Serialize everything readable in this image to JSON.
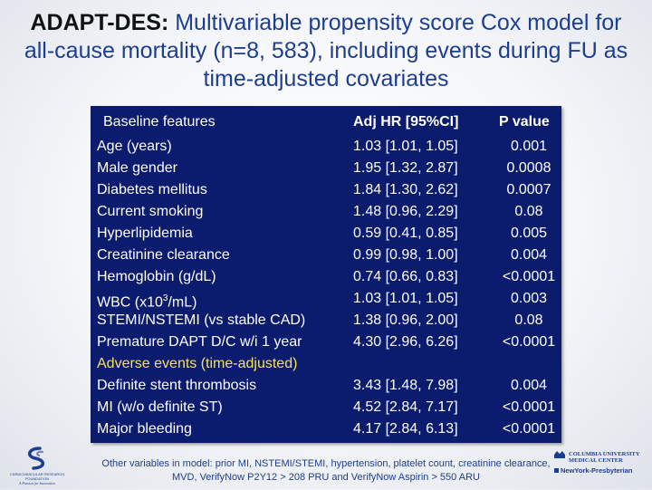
{
  "title": {
    "bold": "ADAPT-DES:",
    "rest": " Multivariable propensity score Cox model for all-cause mortality (n=8, 583), including events during FU as time-adjusted covariates"
  },
  "table": {
    "headers": {
      "feature": "Baseline features",
      "hr": "Adj HR [95%CI]",
      "p": "P value"
    },
    "rows": [
      {
        "feature": "Age (years)",
        "hr": "1.03 [1.01, 1.05]",
        "p": "0.001"
      },
      {
        "feature": "Male gender",
        "hr": "1.95 [1.32, 2.87]",
        "p": "0.0008"
      },
      {
        "feature": "Diabetes mellitus",
        "hr": "1.84 [1.30, 2.62]",
        "p": "0.0007"
      },
      {
        "feature": "Current smoking",
        "hr": "1.48 [0.96, 2.29]",
        "p": "0.08"
      },
      {
        "feature": "Hyperlipidemia",
        "hr": "0.59 [0.41, 0.85]",
        "p": "0.005"
      },
      {
        "feature": "Creatinine clearance",
        "hr": "0.99 [0.98, 1.00]",
        "p": "0.004"
      },
      {
        "feature": "Hemoglobin (g/dL)",
        "hr": "0.74 [0.66, 0.83]",
        "p": "<0.0001"
      },
      {
        "feature_pre": "WBC (x10",
        "feature_sup": "3",
        "feature_post": "/mL)",
        "hr": "1.03 [1.01, 1.05]",
        "p": "0.003"
      },
      {
        "feature": "STEMI/NSTEMI (vs stable CAD)",
        "hr": "1.38 [0.96, 2.00]",
        "p": "0.08"
      },
      {
        "feature": "Premature DAPT D/C w/i 1 year",
        "hr": "4.30 [2.96, 6.26]",
        "p": "<0.0001"
      }
    ],
    "adverse_heading": "Adverse events (time-adjusted)",
    "adverse_rows": [
      {
        "feature": "Definite stent thrombosis",
        "hr": "3.43 [1.48, 7.98]",
        "p": "0.004"
      },
      {
        "feature": "MI (w/o definite ST)",
        "hr": "4.52 [2.84, 7.17]",
        "p": "<0.0001"
      },
      {
        "feature": "Major bleeding",
        "hr": "4.17 [2.84, 6.13]",
        "p": "<0.0001"
      }
    ]
  },
  "footnote": "Other variables in model: prior MI, NSTEMI/STEMI, hypertension, platelet count, creatinine clearance, MVD, VerifyNow P2Y12 > 208 PRU and VerifyNow Aspirin > 550 ARU",
  "logos": {
    "left": {
      "line1": "CARDIOVASCULAR RESEARCH",
      "line2": "FOUNDATION",
      "line3": "A Passion for Innovation"
    },
    "right": {
      "line1": "COLUMBIA UNIVERSITY",
      "line2": "MEDICAL CENTER",
      "line3": "NewYork-Presbyterian"
    }
  }
}
